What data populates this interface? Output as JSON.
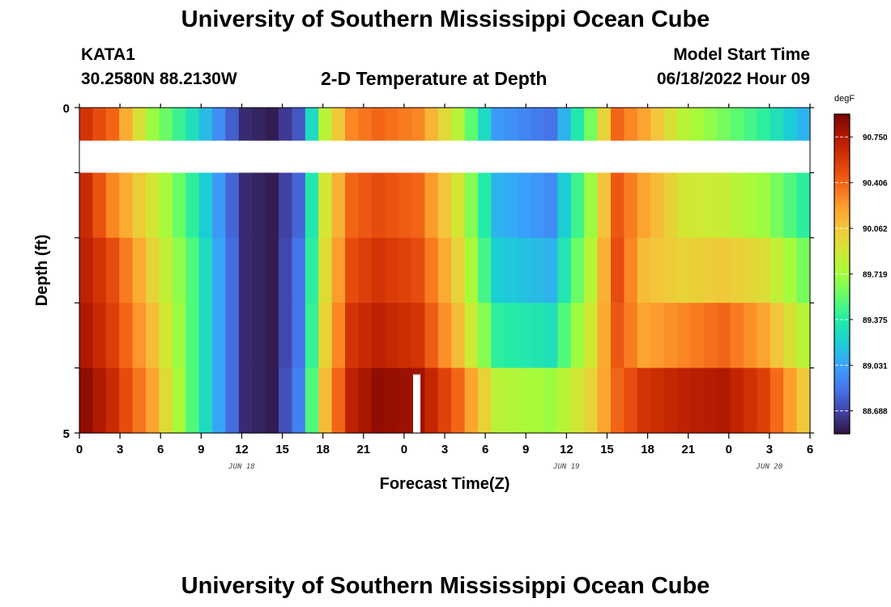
{
  "header": {
    "title": "University of Southern Mississippi Ocean Cube",
    "station": "KATA1",
    "location": "30.2580N  88.2130W",
    "subtitle": "2-D Temperature at Depth",
    "model_label": "Model Start Time",
    "model_time": "06/18/2022 Hour 09"
  },
  "footer": {
    "title": "University of Southern Mississippi Ocean Cube"
  },
  "chart_data": {
    "type": "heatmap",
    "xlabel": "Forecast Time(Z)",
    "ylabel": "Depth (ft)",
    "x_tick_labels": [
      "0",
      "3",
      "6",
      "9",
      "12",
      "15",
      "18",
      "21",
      "0",
      "3",
      "6",
      "9",
      "12",
      "15",
      "18",
      "21",
      "0",
      "3",
      "6"
    ],
    "x_hours_since_jun18_00z": [
      0,
      54
    ],
    "date_labels": [
      {
        "label": "JUN 18",
        "at_hour": 12
      },
      {
        "label": "JUN 19",
        "at_hour": 36
      },
      {
        "label": "JUN 20",
        "at_hour": 51
      }
    ],
    "y_tick_labels": [
      "0",
      "5"
    ],
    "ylim": [
      0,
      5
    ],
    "depth_bins": [
      0.5,
      1.5,
      2.5,
      3.5,
      4.5
    ],
    "colorbar": {
      "unit": "degF",
      "min": 88.515,
      "max": 90.922,
      "ticks": [
        "90.750",
        "90.406",
        "90.062",
        "89.719",
        "89.375",
        "89.031",
        "88.688"
      ]
    },
    "colorscale": [
      "#30123b",
      "#4145ab",
      "#4675ed",
      "#39a2fc",
      "#1bcfd4",
      "#24eca6",
      "#61fc6c",
      "#a4fc3b",
      "#d1e834",
      "#f3c63a",
      "#fe9b2d",
      "#f36315",
      "#d93806",
      "#b11901",
      "#7a0402"
    ],
    "missing_data": {
      "x_hour": 25,
      "depth_bin": 4.5
    },
    "profiles": [
      {
        "depth_label": "0.5 ft",
        "hours": [
          0,
          2,
          5,
          8,
          12,
          14,
          16,
          18,
          20,
          22,
          25,
          28,
          31,
          35,
          38,
          40,
          42,
          45,
          48,
          51,
          54
        ],
        "values": [
          90.6,
          90.4,
          89.7,
          89.3,
          88.6,
          88.55,
          88.75,
          89.8,
          90.3,
          90.4,
          90.3,
          89.8,
          89.0,
          88.85,
          89.6,
          90.4,
          90.2,
          89.8,
          89.6,
          89.4,
          89.1
        ]
      },
      {
        "depth_label": "1.5 ft",
        "hours": [
          0,
          2,
          5,
          8,
          12,
          14,
          16,
          18,
          20,
          22,
          25,
          28,
          31,
          35,
          38,
          40,
          42,
          45,
          48,
          51,
          54
        ],
        "values": [
          90.65,
          90.3,
          89.9,
          89.4,
          88.6,
          88.55,
          88.8,
          89.9,
          90.4,
          90.5,
          90.4,
          89.9,
          89.1,
          88.95,
          89.7,
          90.45,
          90.2,
          89.9,
          89.85,
          89.7,
          89.4
        ]
      },
      {
        "depth_label": "2.5 ft",
        "hours": [
          0,
          2,
          5,
          8,
          12,
          14,
          16,
          18,
          20,
          22,
          25,
          28,
          31,
          35,
          38,
          40,
          42,
          45,
          48,
          51,
          54
        ],
        "values": [
          90.7,
          90.5,
          90.0,
          89.5,
          88.6,
          88.55,
          88.85,
          89.95,
          90.5,
          90.6,
          90.5,
          90.0,
          89.2,
          89.1,
          89.8,
          90.5,
          90.1,
          90.0,
          90.05,
          89.95,
          89.6
        ]
      },
      {
        "depth_label": "3.5 ft",
        "hours": [
          0,
          2,
          5,
          8,
          12,
          14,
          16,
          18,
          20,
          22,
          25,
          28,
          31,
          35,
          38,
          40,
          42,
          45,
          48,
          51,
          54
        ],
        "values": [
          90.75,
          90.55,
          90.1,
          89.5,
          88.6,
          88.55,
          88.85,
          90.0,
          90.6,
          90.7,
          90.6,
          90.1,
          89.4,
          89.3,
          89.9,
          90.45,
          90.2,
          90.3,
          90.4,
          90.2,
          89.8
        ]
      },
      {
        "depth_label": "4.5 ft",
        "hours": [
          0,
          2,
          5,
          8,
          12,
          14,
          16,
          18,
          20,
          22,
          25,
          28,
          31,
          35,
          38,
          40,
          42,
          45,
          48,
          51,
          54
        ],
        "values": [
          90.85,
          90.65,
          90.2,
          89.5,
          88.6,
          88.55,
          88.9,
          90.1,
          90.7,
          90.85,
          90.8,
          90.4,
          89.8,
          89.7,
          90.0,
          90.4,
          90.6,
          90.7,
          90.75,
          90.55,
          90.05
        ]
      }
    ]
  }
}
